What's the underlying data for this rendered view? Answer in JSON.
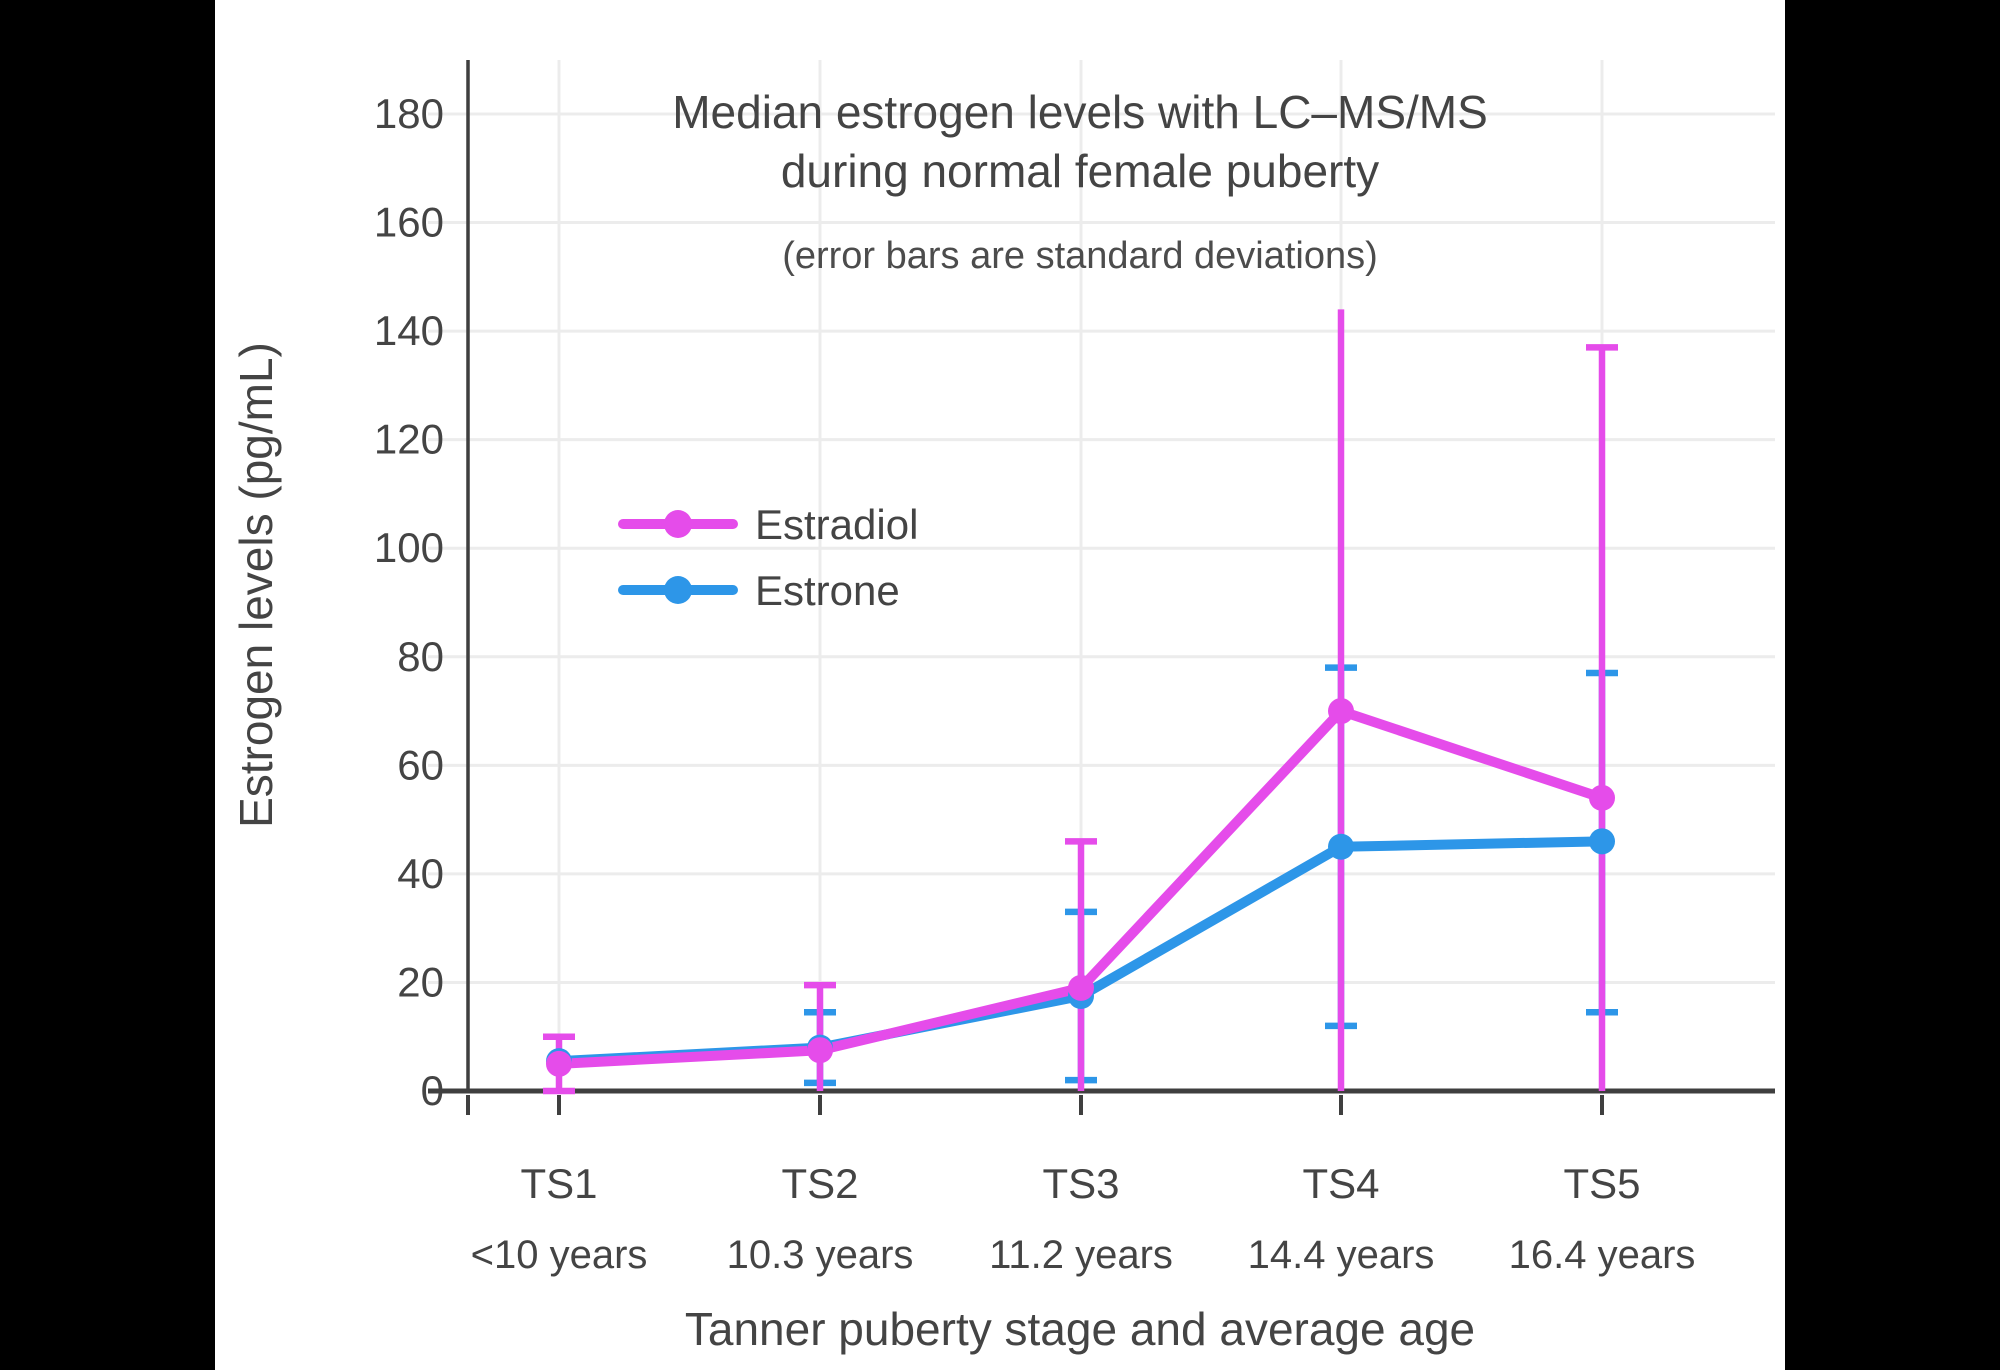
{
  "window": {
    "background": "#000000",
    "canvas_color": "#ffffff"
  },
  "chart_data": {
    "type": "line",
    "title_line1": "Median estrogen levels with LC–MS/MS",
    "title_line2": "during normal female puberty",
    "subtitle": "(error bars are standard deviations)",
    "xlabel": "Tanner puberty stage and average age",
    "ylabel": "Estrogen levels (pg/mL)",
    "ylim": [
      0,
      190
    ],
    "yticks": [
      0,
      20,
      40,
      60,
      80,
      100,
      120,
      140,
      160,
      180
    ],
    "grid": true,
    "legend_position": "inside-left",
    "categories": [
      "TS1",
      "TS2",
      "TS3",
      "TS4",
      "TS5"
    ],
    "category_ages": [
      "<10 years",
      "10.3 years",
      "11.2 years",
      "14.4 years",
      "16.4 years"
    ],
    "axis_color": "#3f3f3f",
    "grid_color": "#ececec",
    "text_color": "#444444",
    "series": [
      {
        "name": "Estradiol",
        "color": "#E54CEA",
        "values": [
          5,
          7.5,
          19,
          70,
          54
        ],
        "error_top": [
          10,
          19.5,
          46,
          144,
          137
        ],
        "error_bottom": [
          0,
          0,
          0,
          0,
          0
        ],
        "cap_top": [
          true,
          true,
          true,
          false,
          true
        ],
        "cap_bottom": [
          true,
          false,
          false,
          false,
          false
        ]
      },
      {
        "name": "Estrone",
        "color": "#2D96E8",
        "values": [
          5.5,
          8,
          17.5,
          45,
          46
        ],
        "error_top": [
          null,
          14.5,
          33,
          78,
          77
        ],
        "error_bottom": [
          null,
          1.5,
          2,
          12,
          14.5
        ],
        "cap_top": [
          false,
          true,
          true,
          true,
          true
        ],
        "cap_bottom": [
          false,
          true,
          true,
          true,
          true
        ]
      }
    ]
  }
}
